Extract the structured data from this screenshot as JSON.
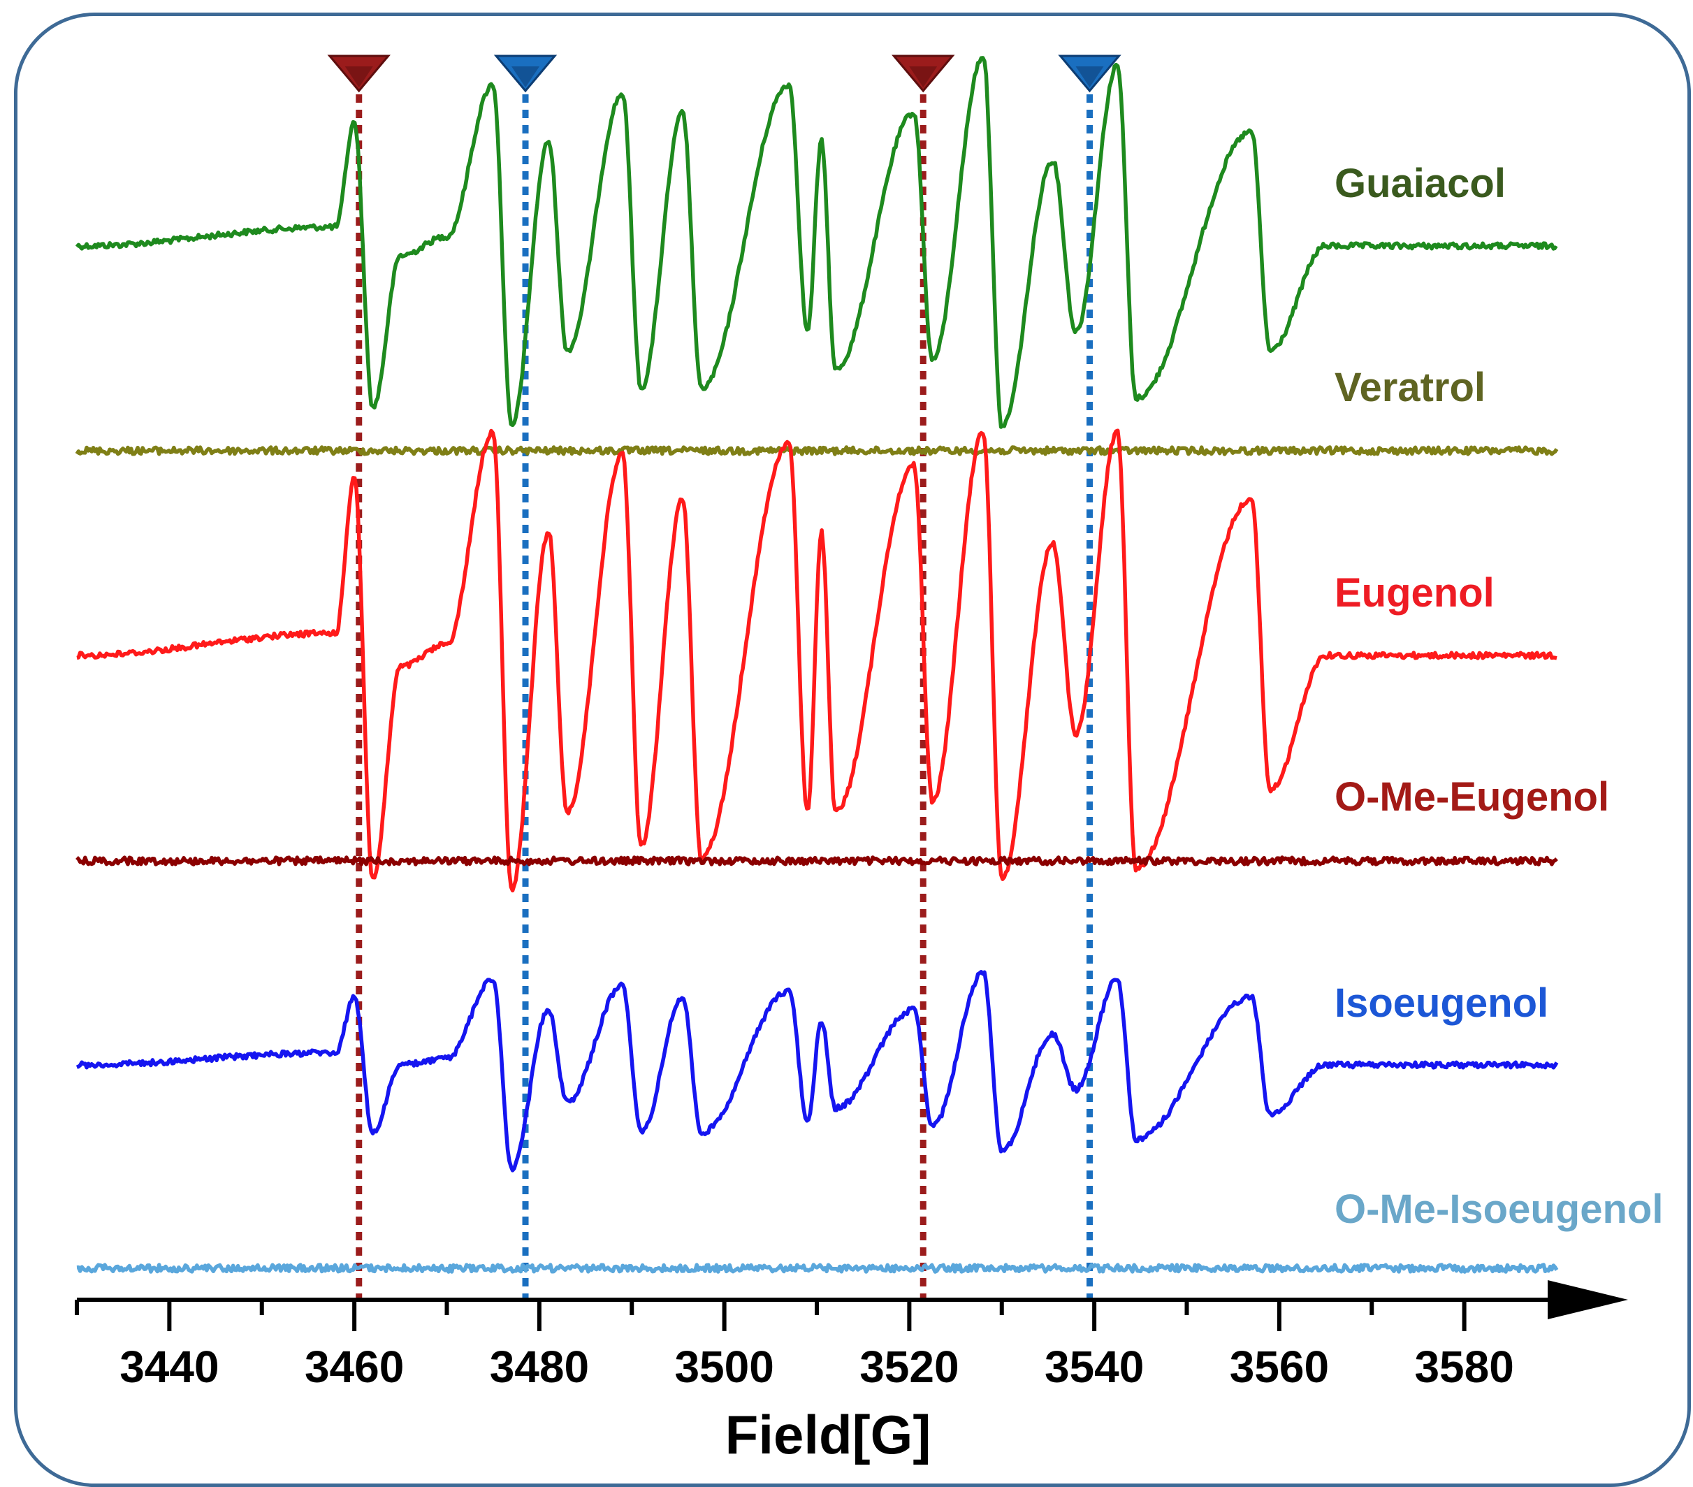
{
  "chart_data": {
    "type": "line",
    "title": "",
    "xlabel": "Field[G]",
    "ylabel": "",
    "xlim": [
      3430,
      3590
    ],
    "x_ticks": [
      3440,
      3460,
      3480,
      3500,
      3520,
      3540,
      3560,
      3580
    ],
    "x_ticks_minor_step": 10,
    "yticks_shown": false,
    "grid": false,
    "legend": "none",
    "markers": [
      {
        "x": 3460.5,
        "color": "#9b1c1c",
        "style": "dotted",
        "triangle": true
      },
      {
        "x": 3478.5,
        "color": "#1a6fc0",
        "style": "dotted",
        "triangle": true
      },
      {
        "x": 3521.5,
        "color": "#9b1c1c",
        "style": "dotted",
        "triangle": true
      },
      {
        "x": 3539.5,
        "color": "#1a6fc0",
        "style": "dotted",
        "triangle": true
      }
    ],
    "peak_positions": [
      3460,
      3462,
      3465,
      3475,
      3477,
      3481,
      3483,
      3489,
      3491,
      3495.5,
      3497.5,
      3507,
      3509,
      3510.5,
      3512,
      3520.5,
      3522.5,
      3528,
      3530,
      3535.5,
      3538,
      3542.5,
      3544.5,
      3557,
      3559
    ],
    "series": [
      {
        "name": "Guaiacol",
        "color": "#1e8a1e",
        "label_color": "#3a5a1e",
        "kind": "spectrum",
        "amplitude": 0.85,
        "x": [
          3430,
          3458,
          3460,
          3462,
          3465,
          3470,
          3475,
          3477,
          3481,
          3483,
          3489,
          3491,
          3495.5,
          3497.5,
          3507,
          3509,
          3510.5,
          3512,
          3520.5,
          3522.5,
          3528,
          3530,
          3535.5,
          3538,
          3542.5,
          3544.5,
          3557,
          3559,
          3565,
          3590
        ],
        "y": [
          0,
          0.1,
          0.65,
          -0.85,
          -0.05,
          0.05,
          0.85,
          -0.95,
          0.55,
          -0.55,
          0.8,
          -0.75,
          0.7,
          -0.75,
          0.85,
          -0.45,
          0.55,
          -0.65,
          0.7,
          -0.6,
          1.0,
          -0.95,
          0.45,
          -0.45,
          0.95,
          -0.8,
          0.6,
          -0.55,
          0,
          0
        ]
      },
      {
        "name": "Veratrol",
        "color": "#7f7f16",
        "label_color": "#5f6422",
        "kind": "flat",
        "x": [
          3430,
          3590
        ],
        "y": [
          0,
          0
        ]
      },
      {
        "name": "Eugenol",
        "color": "#ff1a1a",
        "label_color": "#ee1c24",
        "kind": "spectrum",
        "amplitude": 1.0,
        "x": [
          3430,
          3458,
          3460,
          3462,
          3465,
          3470,
          3475,
          3477,
          3481,
          3483,
          3489,
          3491,
          3495.5,
          3497.5,
          3507,
          3509,
          3510.5,
          3512,
          3520.5,
          3522.5,
          3528,
          3530,
          3535.5,
          3538,
          3542.5,
          3544.5,
          3557,
          3559,
          3565,
          3590
        ],
        "y": [
          0,
          0.1,
          0.8,
          -1.0,
          -0.05,
          0.05,
          1.0,
          -1.05,
          0.55,
          -0.7,
          0.9,
          -0.85,
          0.7,
          -0.9,
          0.95,
          -0.7,
          0.55,
          -0.7,
          0.85,
          -0.65,
          1.0,
          -1.0,
          0.5,
          -0.35,
          1.0,
          -0.95,
          0.7,
          -0.6,
          0,
          0
        ]
      },
      {
        "name": "O-Me-Eugenol",
        "color": "#8b0000",
        "label_color": "#a31a16",
        "kind": "flat",
        "x": [
          3430,
          3590
        ],
        "y": [
          0,
          0
        ]
      },
      {
        "name": "Isoeugenol",
        "color": "#1515f0",
        "label_color": "#1c57d6",
        "kind": "spectrum",
        "amplitude": 0.55,
        "x": [
          3430,
          3458,
          3460,
          3462,
          3465,
          3470,
          3475,
          3477,
          3481,
          3483,
          3489,
          3491,
          3495.5,
          3497.5,
          3507,
          3509,
          3510.5,
          3512,
          3520.5,
          3522.5,
          3528,
          3530,
          3535.5,
          3538,
          3542.5,
          3544.5,
          3557,
          3559,
          3565,
          3590
        ],
        "y": [
          0,
          0.1,
          0.55,
          -0.55,
          0,
          0.05,
          0.7,
          -0.85,
          0.45,
          -0.3,
          0.65,
          -0.55,
          0.55,
          -0.55,
          0.6,
          -0.45,
          0.35,
          -0.35,
          0.45,
          -0.5,
          0.75,
          -0.7,
          0.25,
          -0.2,
          0.7,
          -0.6,
          0.55,
          -0.4,
          0,
          0
        ]
      },
      {
        "name": "O-Me-Isoeugenol",
        "color": "#5aa7dc",
        "label_color": "#6aa7c9",
        "kind": "flat",
        "x": [
          3430,
          3590
        ],
        "y": [
          0,
          0
        ]
      }
    ]
  }
}
